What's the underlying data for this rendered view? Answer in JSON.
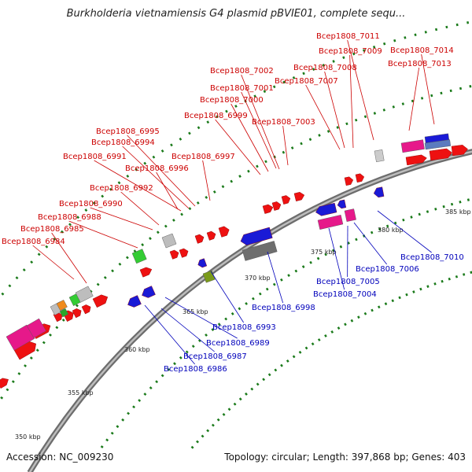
{
  "title": "Burkholderia vietnamiensis G4 plasmid pBVIE01, complete sequ...",
  "footer": {
    "accession": "Accession: NC_009230",
    "summary": "Topology: circular; Length: 397,868 bp; Genes: 403"
  },
  "colors": {
    "forward_label": "#cc0000",
    "reverse_label": "#0000bb",
    "forward_gene": "#ee1111",
    "reverse_gene": "#1a1ad6",
    "tick": "#1a7a1a",
    "backbone": "#8a8a8a"
  },
  "ticks": {
    "labels": [
      "350 kbp",
      "355 kbp",
      "360 kbp",
      "365 kbp",
      "370 kbp",
      "375 kbp",
      "380 kbp",
      "385 kbp"
    ]
  },
  "forward_labels": [
    "Bcep1808_7011",
    "Bcep1808_7009",
    "Bcep1808_7014",
    "Bcep1808_7008",
    "Bcep1808_7013",
    "Bcep1808_7007",
    "Bcep1808_7002",
    "Bcep1808_7001",
    "Bcep1808_7000",
    "Bcep1808_6999",
    "Bcep1808_7003",
    "Bcep1808_6995",
    "Bcep1808_6994",
    "Bcep1808_6991",
    "Bcep1808_6997",
    "Bcep1808_6996",
    "Bcep1808_6992",
    "Bcep1808_6990",
    "Bcep1808_6988",
    "Bcep1808_6985",
    "Bcep1808_6984"
  ],
  "reverse_labels": [
    "Bcep1808_7010",
    "Bcep1808_7006",
    "Bcep1808_7005",
    "Bcep1808_7004",
    "Bcep1808_6998",
    "Bcep1808_6993",
    "Bcep1808_6989",
    "Bcep1808_6987",
    "Bcep1808_6986"
  ]
}
